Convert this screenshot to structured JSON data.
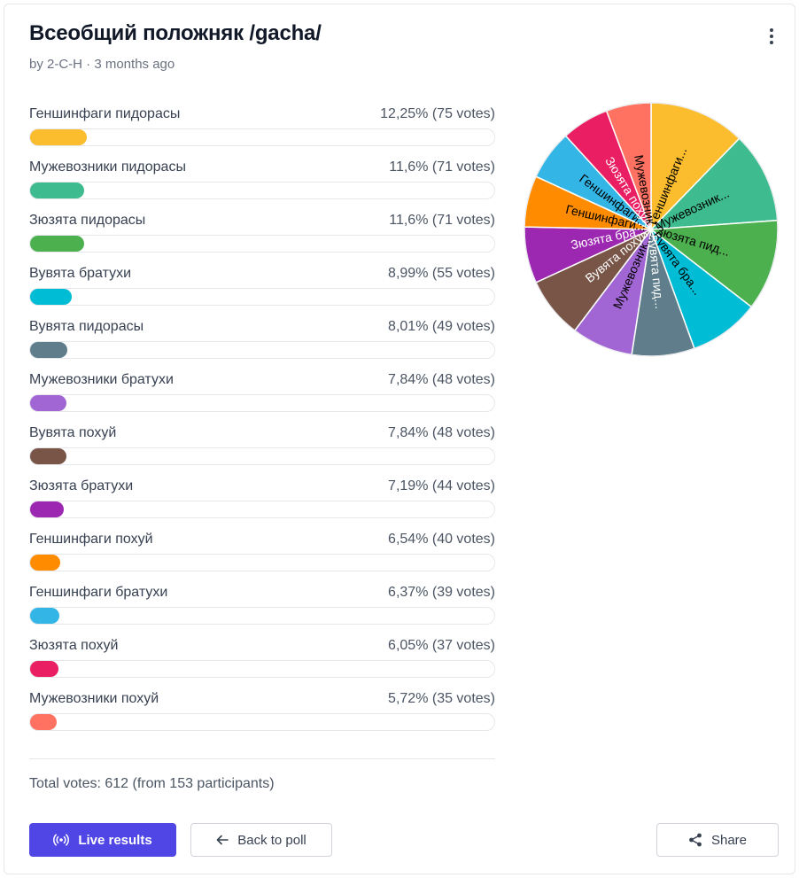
{
  "poll": {
    "title": "Всеобщий положняк /gacha/",
    "meta": "by 2-C-H · 3 months ago",
    "menu_icon": "more-vertical-icon"
  },
  "options": [
    {
      "label": "Геншинфаги пидорасы",
      "percent": 12.25,
      "votes": 75,
      "value_text": "12,25% (75 votes)",
      "color": "#FBBD2E",
      "short": "Геншинфаги..."
    },
    {
      "label": "Мужевозники пидорасы",
      "percent": 11.6,
      "votes": 71,
      "value_text": "11,6% (71 votes)",
      "color": "#3EBB8F",
      "short": "Мужевозник..."
    },
    {
      "label": "Зюзята пидорасы",
      "percent": 11.6,
      "votes": 71,
      "value_text": "11,6% (71 votes)",
      "color": "#4DB04F",
      "short": "Зюзята пид..."
    },
    {
      "label": "Вувята братухи",
      "percent": 8.99,
      "votes": 55,
      "value_text": "8,99% (55 votes)",
      "color": "#00BCD4",
      "short": "Вувята бра..."
    },
    {
      "label": "Вувята пидорасы",
      "percent": 8.01,
      "votes": 49,
      "value_text": "8,01% (49 votes)",
      "color": "#607D8B",
      "short": "Вувята пид..."
    },
    {
      "label": "Мужевозники братухи",
      "percent": 7.84,
      "votes": 48,
      "value_text": "7,84% (48 votes)",
      "color": "#A166D4",
      "short": "Мужевозник..."
    },
    {
      "label": "Вувята похуй",
      "percent": 7.84,
      "votes": 48,
      "value_text": "7,84% (48 votes)",
      "color": "#795548",
      "short": "Вувята похуй"
    },
    {
      "label": "Зюзята братухи",
      "percent": 7.19,
      "votes": 44,
      "value_text": "7,19% (44 votes)",
      "color": "#9C27B0",
      "short": "Зюзята бра..."
    },
    {
      "label": "Геншинфаги похуй",
      "percent": 6.54,
      "votes": 40,
      "value_text": "6,54% (40 votes)",
      "color": "#FF8C00",
      "short": "Геншинфаги..."
    },
    {
      "label": "Геншинфаги братухи",
      "percent": 6.37,
      "votes": 39,
      "value_text": "6,37% (39 votes)",
      "color": "#33B5E5",
      "short": "Геншинфаги..."
    },
    {
      "label": "Зюзята похуй",
      "percent": 6.05,
      "votes": 37,
      "value_text": "6,05% (37 votes)",
      "color": "#E91E63",
      "short": "Зюзята похуй"
    },
    {
      "label": "Мужевозники похуй",
      "percent": 5.72,
      "votes": 35,
      "value_text": "5,72% (35 votes)",
      "color": "#FF7262",
      "short": "Мужевозник"
    }
  ],
  "footer": {
    "total": "Total votes: 612 (from 153 participants)",
    "live_label": "Live results",
    "live_icon": "broadcast-icon",
    "back_label": "Back to poll",
    "back_icon": "arrow-left-icon",
    "share_label": "Share",
    "share_icon": "share-icon"
  },
  "chart_data": {
    "type": "pie",
    "categories": [
      "Геншинфаги...",
      "Мужевозник...",
      "Зюзята пид...",
      "Вувята бра...",
      "Вувята пид...",
      "Мужевозник...",
      "Вувята похуй",
      "Зюзята бра...",
      "Геншинфаги...",
      "Геншинфаги...",
      "Зюзята похуй",
      "Мужевозник"
    ],
    "values": [
      75,
      71,
      71,
      55,
      49,
      48,
      48,
      44,
      40,
      39,
      37,
      35
    ],
    "colors": [
      "#FBBD2E",
      "#3EBB8F",
      "#4DB04F",
      "#00BCD4",
      "#607D8B",
      "#A166D4",
      "#795548",
      "#9C27B0",
      "#FF8C00",
      "#33B5E5",
      "#E91E63",
      "#FF7262"
    ],
    "label_colors": [
      "#000000",
      "#000000",
      "#000000",
      "#000000",
      "#ffffff",
      "#000000",
      "#ffffff",
      "#ffffff",
      "#000000",
      "#000000",
      "#ffffff",
      "#000000"
    ],
    "start": "top",
    "direction": "clockwise",
    "legend": "none"
  }
}
